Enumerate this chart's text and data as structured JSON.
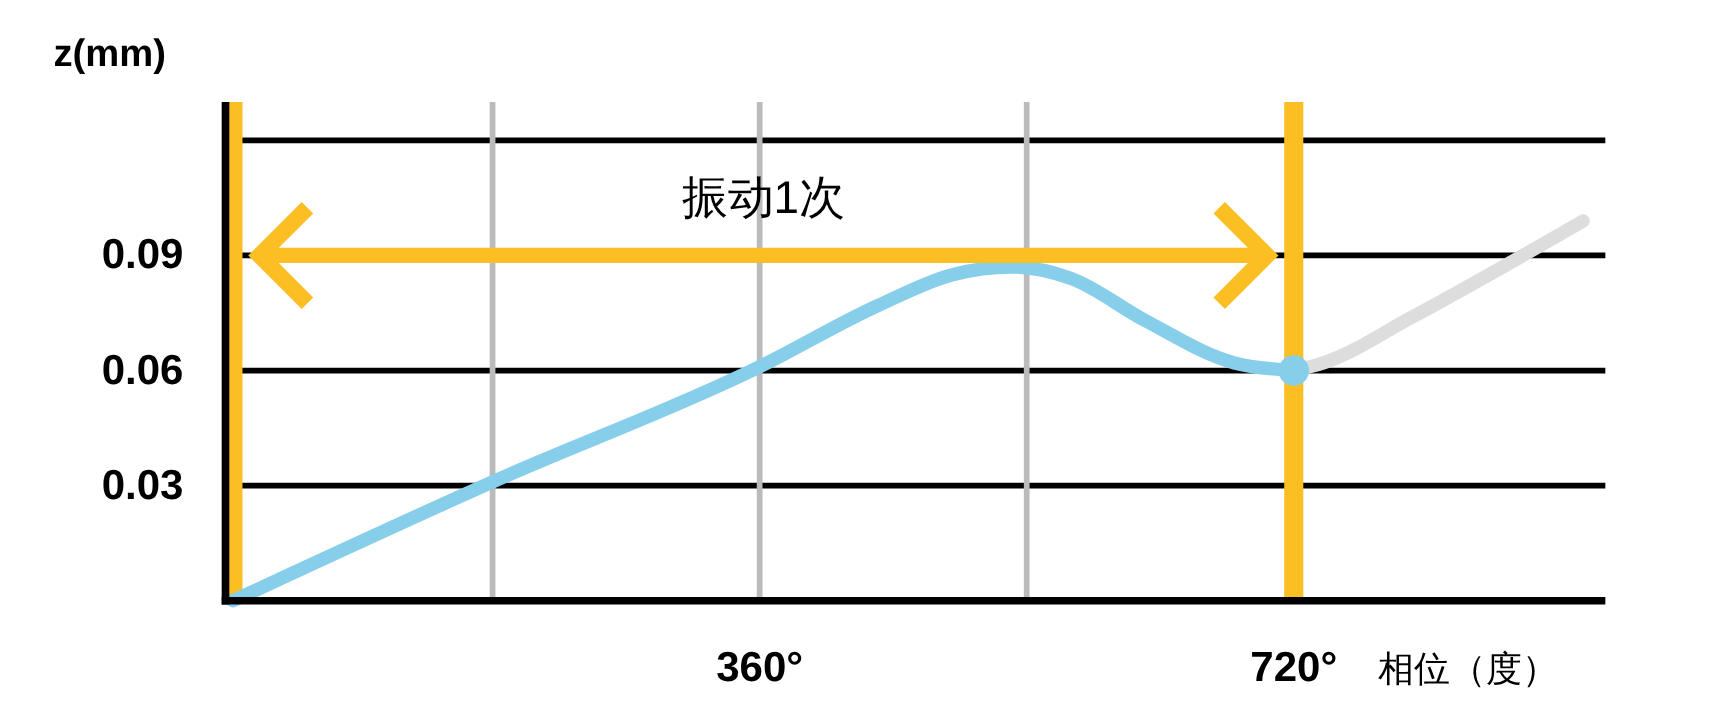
{
  "chart_data": {
    "type": "line",
    "xlabel": "相位（度）",
    "ylabel": "z(mm)",
    "xlim": [
      0,
      930
    ],
    "ylim": [
      0,
      0.13
    ],
    "xticks": [
      {
        "value": 180,
        "label": null
      },
      {
        "value": 360,
        "label": "360°"
      },
      {
        "value": 540,
        "label": null
      },
      {
        "value": 720,
        "label": "720°"
      }
    ],
    "yticks": [
      0.03,
      0.06,
      0.09,
      {
        "value": 0.12,
        "label": null
      }
    ],
    "grid": true,
    "line_style": "solid",
    "series": [
      {
        "color": "#87ceeb",
        "x": [
          5,
          180,
          360,
          440,
          490,
          530,
          570,
          620,
          680,
          720
        ],
        "values": [
          0,
          0.031,
          0.061,
          0.077,
          0.085,
          0.087,
          0.084,
          0.073,
          0.062,
          0.06
        ]
      },
      {
        "color": "#dddddd",
        "x": [
          720,
          740,
          800,
          915
        ],
        "values": [
          0.06,
          0.062,
          0.074,
          0.099
        ]
      },
      {
        "type": "scatter",
        "marker": "circle",
        "color": "#87ceeb",
        "x": [
          720
        ],
        "values": [
          0.06
        ]
      }
    ],
    "ref_lines": [
      {
        "axis": "x",
        "value": 5,
        "color": "#fbbf24"
      },
      {
        "axis": "x",
        "value": 720,
        "color": "#fbbf24"
      }
    ],
    "annotations": [
      "振动1次"
    ]
  }
}
